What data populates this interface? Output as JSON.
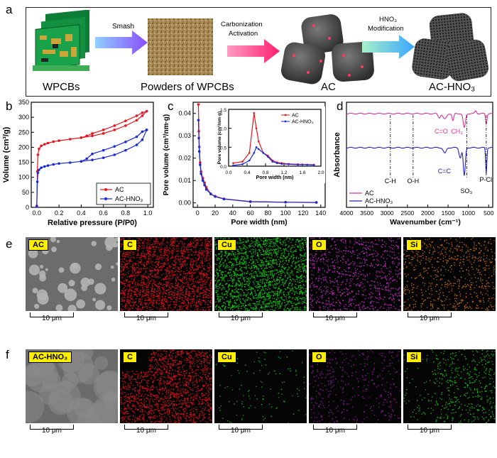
{
  "panels": {
    "a": "a",
    "b": "b",
    "c": "c",
    "d": "d",
    "e": "e",
    "f": "f"
  },
  "scheme": {
    "captions": [
      "WPCBs",
      "Powders  of  WPCBs",
      "AC",
      "AC-HNO₃"
    ],
    "arrow1": "Smash",
    "arrow2a": "Carbonization",
    "arrow2b": "Activation",
    "arrow3a": "HNO₃",
    "arrow3b": "Modification"
  },
  "chart_data": [
    {
      "type": "line",
      "panel": "b",
      "xlabel": "Relative pressure (P/P0)",
      "ylabel": "Volume (cm³/g)",
      "xlim": [
        -0.05,
        1.05
      ],
      "ylim": [
        0,
        350
      ],
      "xticks": [
        0.0,
        0.2,
        0.4,
        0.6,
        0.8,
        1.0
      ],
      "yticks": [
        0,
        50,
        100,
        150,
        200,
        250,
        300,
        350
      ],
      "legend": "bottom-right",
      "series": [
        {
          "name": "AC",
          "color": "#e8141e",
          "x": [
            0.0,
            0.005,
            0.01,
            0.02,
            0.04,
            0.07,
            0.1,
            0.15,
            0.2,
            0.3,
            0.4,
            0.5,
            0.6,
            0.7,
            0.8,
            0.9,
            0.95,
            0.99
          ],
          "y": [
            5,
            120,
            175,
            195,
            205,
            210,
            214,
            219,
            222,
            227,
            232,
            238,
            246,
            258,
            272,
            290,
            305,
            320
          ],
          "desorption_x": [
            0.99,
            0.95,
            0.9,
            0.8,
            0.7,
            0.6,
            0.5,
            0.45,
            0.4
          ],
          "desorption_y": [
            320,
            315,
            305,
            288,
            272,
            258,
            246,
            238,
            232
          ]
        },
        {
          "name": "AC-HNO₃",
          "color": "#1a2ad6",
          "x": [
            0.0,
            0.005,
            0.01,
            0.02,
            0.04,
            0.07,
            0.1,
            0.15,
            0.2,
            0.3,
            0.4,
            0.5,
            0.6,
            0.7,
            0.8,
            0.9,
            0.95,
            0.99
          ],
          "y": [
            3,
            85,
            115,
            125,
            132,
            136,
            139,
            143,
            146,
            149,
            153,
            158,
            165,
            175,
            190,
            208,
            225,
            258
          ],
          "desorption_x": [
            0.99,
            0.95,
            0.9,
            0.8,
            0.7,
            0.6,
            0.5,
            0.45,
            0.4
          ],
          "desorption_y": [
            258,
            252,
            235,
            218,
            203,
            190,
            178,
            162,
            153
          ]
        }
      ]
    },
    {
      "type": "line",
      "panel": "c",
      "xlabel": "Pore width (nm)",
      "ylabel": "Pore volume (cm³/nm·g)",
      "xlim": [
        -5,
        145
      ],
      "ylim": [
        -0.002,
        0.045
      ],
      "xticks": [
        0,
        20,
        40,
        60,
        80,
        100,
        120,
        140
      ],
      "yticks": [
        0.0,
        0.01,
        0.02,
        0.03,
        0.04
      ],
      "series": [
        {
          "name": "AC",
          "color": "#e8141e",
          "x": [
            1,
            1.5,
            2,
            3,
            4,
            6,
            8,
            10,
            15,
            20,
            30,
            60,
            100,
            135
          ],
          "y": [
            0.044,
            0.032,
            0.025,
            0.018,
            0.014,
            0.011,
            0.009,
            0.007,
            0.004,
            0.003,
            0.0018,
            0.0006,
            0.0003,
            0.0002
          ]
        },
        {
          "name": "AC-HNO₃",
          "color": "#1a2ad6",
          "x": [
            1,
            1.5,
            2,
            3,
            4,
            6,
            8,
            10,
            15,
            20,
            30,
            60,
            100,
            135
          ],
          "y": [
            0.037,
            0.029,
            0.023,
            0.017,
            0.013,
            0.01,
            0.008,
            0.006,
            0.004,
            0.0028,
            0.0017,
            0.0005,
            0.0003,
            0.0002
          ]
        }
      ],
      "inset": {
        "xlabel": "Pore width (nm)",
        "ylabel": "Pore volume (cm³/nm·g)",
        "xlim": [
          0,
          2.0
        ],
        "ylim": [
          0,
          1.5
        ],
        "xticks": [
          0.0,
          0.4,
          0.8,
          1.2,
          1.6,
          2.0
        ],
        "yticks": [
          0.0,
          0.5,
          1.0,
          1.5
        ],
        "series": [
          {
            "name": "AC",
            "color": "#e8141e",
            "x": [
              0.1,
              0.3,
              0.45,
              0.55,
              0.6,
              0.65,
              0.75,
              0.85,
              0.95,
              1.05,
              1.15,
              1.3,
              1.5,
              1.7,
              1.85
            ],
            "y": [
              0.08,
              0.12,
              0.35,
              1.4,
              1.0,
              0.65,
              0.35,
              0.28,
              0.15,
              0.1,
              0.08,
              0.06,
              0.05,
              0.04,
              0.04
            ]
          },
          {
            "name": "AC-HNO₃",
            "color": "#1a2ad6",
            "x": [
              0.1,
              0.3,
              0.45,
              0.55,
              0.6,
              0.65,
              0.75,
              0.85,
              0.95,
              1.05,
              1.15,
              1.3,
              1.5,
              1.7,
              1.85
            ],
            "y": [
              0.02,
              0.05,
              0.15,
              0.35,
              0.5,
              0.45,
              0.35,
              0.25,
              0.12,
              0.08,
              0.06,
              0.05,
              0.04,
              0.04,
              0.03
            ]
          }
        ],
        "legend": [
          "AC",
          "AC-HNO₃"
        ]
      }
    },
    {
      "type": "line",
      "panel": "d",
      "xlabel": "Wavenumber (cm⁻¹)",
      "ylabel": "Absorbance",
      "xlim": [
        4000,
        400
      ],
      "xticks": [
        4000,
        3500,
        3000,
        2500,
        2000,
        1500,
        1000,
        500
      ],
      "annotations": [
        "C=O",
        "CH₃",
        "C-H",
        "O-H",
        "C=C",
        "SO₃",
        "P-Cl"
      ],
      "legend": "bottom-left",
      "series": [
        {
          "name": "AC",
          "color": "#e0309a"
        },
        {
          "name": "AC-HNO₃",
          "color": "#2020c8"
        }
      ]
    }
  ],
  "edx": {
    "row_e": {
      "tags": [
        "AC",
        "C",
        "Cu",
        "O",
        "Si"
      ],
      "scale": "10 μm"
    },
    "row_f": {
      "tags": [
        "AC-HNO₃",
        "C",
        "Cu",
        "O",
        "Si"
      ],
      "scale": "10 μm"
    }
  }
}
